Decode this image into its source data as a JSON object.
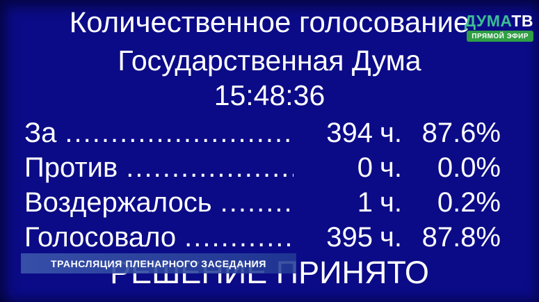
{
  "header": {
    "title": "Количественное голосование",
    "subtitle": "Государственная Дума",
    "time": "15:48:36"
  },
  "logo": {
    "brand_primary": "ДУМА",
    "brand_secondary": "ТВ",
    "live_badge": "ПРЯМОЙ ЭФИР",
    "brand_color": "#3cbe93",
    "badge_color": "#2f9e44"
  },
  "votes": {
    "rows": [
      {
        "label": "За",
        "dots": "............................",
        "count": "394",
        "units": "ч.",
        "percent": "87.6%"
      },
      {
        "label": "Против",
        "dots": ".....................",
        "count": "0",
        "units": "ч.",
        "percent": "0.0%"
      },
      {
        "label": "Воздержалось",
        "dots": ".........",
        "count": "1",
        "units": "ч.",
        "percent": "0.2%"
      },
      {
        "label": "Голосовало",
        "dots": "..............",
        "count": "395",
        "units": "ч.",
        "percent": "87.8%"
      }
    ]
  },
  "ticker": {
    "text": "ТРАНСЛЯЦИЯ ПЛЕНАРНОГО ЗАСЕДАНИЯ"
  },
  "result": {
    "text": "РЕШЕНИЕ ПРИНЯТО"
  },
  "colors": {
    "background": "#0b0b87",
    "text": "#ffffff",
    "ticker_bg": "#2a4aa0"
  }
}
